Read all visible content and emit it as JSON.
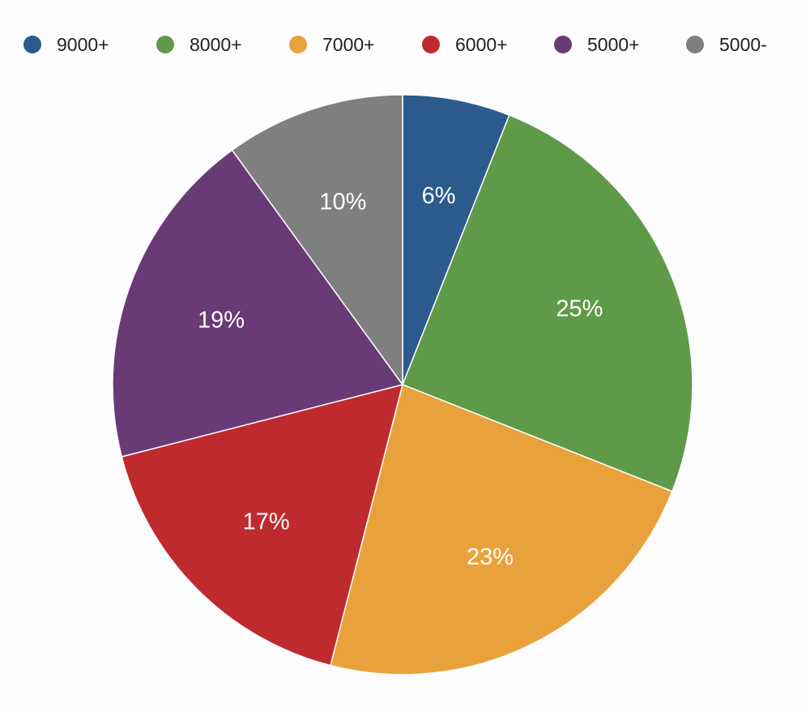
{
  "chart_data": {
    "type": "pie",
    "title": "",
    "legend_position": "top",
    "start": "top, clockwise",
    "categories": [
      "9000+",
      "8000+",
      "7000+",
      "6000+",
      "5000+",
      "5000-"
    ],
    "values": [
      6,
      25,
      23,
      17,
      19,
      10
    ],
    "labels": [
      "6%",
      "25%",
      "23%",
      "17%",
      "19%",
      "10%"
    ],
    "colors": [
      "#2c5a8c",
      "#5f9a48",
      "#e9a23b",
      "#bf2a2e",
      "#6a3a77",
      "#7f7f7f"
    ]
  }
}
